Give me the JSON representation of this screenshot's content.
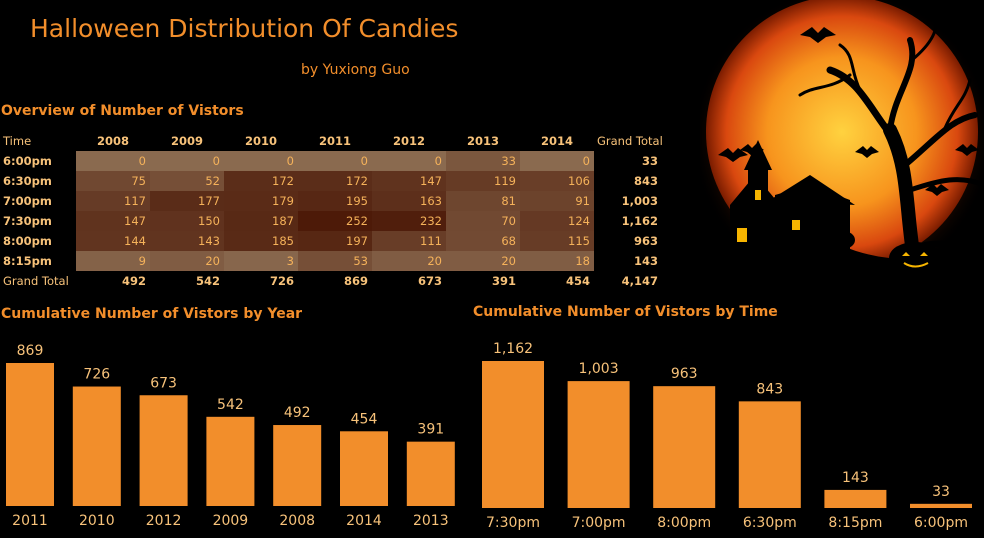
{
  "title": "Halloween Distribution Of Candies",
  "subtitle": "by Yuxiong Guo",
  "overview": {
    "title": "Overview of Number of Vistors",
    "corner_label": "Time",
    "years": [
      "2008",
      "2009",
      "2010",
      "2011",
      "2012",
      "2013",
      "2014"
    ],
    "grand_total_label": "Grand Total",
    "rows": [
      {
        "time": "6:00pm",
        "values": [
          0,
          0,
          0,
          0,
          0,
          33,
          0
        ],
        "total": "33"
      },
      {
        "time": "6:30pm",
        "values": [
          75,
          52,
          172,
          172,
          147,
          119,
          106
        ],
        "total": "843"
      },
      {
        "time": "7:00pm",
        "values": [
          117,
          177,
          179,
          195,
          163,
          81,
          91
        ],
        "total": "1,003"
      },
      {
        "time": "7:30pm",
        "values": [
          147,
          150,
          187,
          252,
          232,
          70,
          124
        ],
        "total": "1,162"
      },
      {
        "time": "8:00pm",
        "values": [
          144,
          143,
          185,
          197,
          111,
          68,
          115
        ],
        "total": "963"
      },
      {
        "time": "8:15pm",
        "values": [
          9,
          20,
          3,
          53,
          20,
          20,
          18
        ],
        "total": "143"
      }
    ],
    "column_totals": [
      "492",
      "542",
      "726",
      "869",
      "673",
      "391",
      "454"
    ],
    "grand_total": "4,147"
  },
  "colors": {
    "background": "#000000",
    "accent": "#f28e2b",
    "bar": "#f28e2b",
    "heat_low": "#8a6a4f",
    "heat_high": "#4d1a08"
  },
  "chart_data": [
    {
      "type": "bar",
      "title": "Cumulative Number of Vistors by Year",
      "categories": [
        "2011",
        "2010",
        "2012",
        "2009",
        "2008",
        "2014",
        "2013"
      ],
      "values": [
        869,
        726,
        673,
        542,
        492,
        454,
        391
      ],
      "value_labels": [
        "869",
        "726",
        "673",
        "542",
        "492",
        "454",
        "391"
      ],
      "ylim": [
        0,
        869
      ],
      "grid": false,
      "legend": "none"
    },
    {
      "type": "bar",
      "title": "Cumulative Number of Vistors by Time",
      "categories": [
        "7:30pm",
        "7:00pm",
        "8:00pm",
        "6:30pm",
        "8:15pm",
        "6:00pm"
      ],
      "values": [
        1162,
        1003,
        963,
        843,
        143,
        33
      ],
      "value_labels": [
        "1,162",
        "1,003",
        "963",
        "843",
        "143",
        "33"
      ],
      "ylim": [
        0,
        1162
      ],
      "grid": false,
      "legend": "none"
    }
  ]
}
